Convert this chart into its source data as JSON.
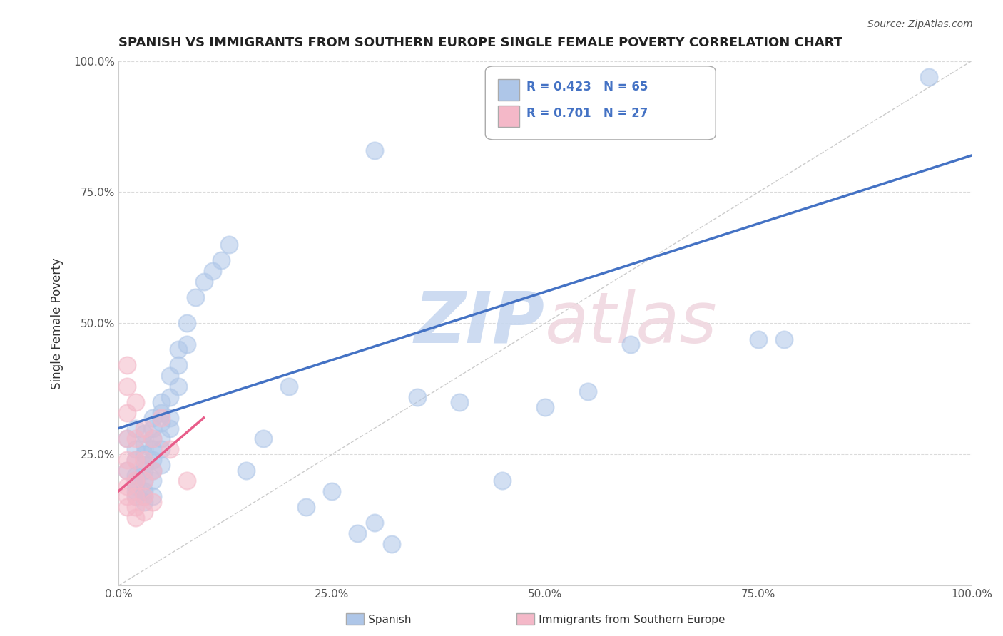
{
  "title": "SPANISH VS IMMIGRANTS FROM SOUTHERN EUROPE SINGLE FEMALE POVERTY CORRELATION CHART",
  "source": "Source: ZipAtlas.com",
  "xlabel": "",
  "ylabel": "Single Female Poverty",
  "xlim": [
    0.0,
    1.0
  ],
  "ylim": [
    0.0,
    1.0
  ],
  "xtick_labels": [
    "0.0%",
    "25.0%",
    "50.0%",
    "75.0%",
    "100.0%"
  ],
  "ytick_labels": [
    "",
    "25.0%",
    "50.0%",
    "75.0%",
    "100.0%"
  ],
  "legend_entries": [
    {
      "label": "Spanish",
      "color": "#aec6e8",
      "R": "0.423",
      "N": "65"
    },
    {
      "label": "Immigrants from Southern Europe",
      "color": "#f4b8c8",
      "R": "0.701",
      "N": "27"
    }
  ],
  "watermark": "ZIPatlas",
  "spanish_scatter": [
    [
      0.01,
      0.28
    ],
    [
      0.01,
      0.22
    ],
    [
      0.02,
      0.3
    ],
    [
      0.02,
      0.26
    ],
    [
      0.02,
      0.24
    ],
    [
      0.02,
      0.21
    ],
    [
      0.02,
      0.2
    ],
    [
      0.02,
      0.19
    ],
    [
      0.02,
      0.18
    ],
    [
      0.02,
      0.17
    ],
    [
      0.03,
      0.29
    ],
    [
      0.03,
      0.27
    ],
    [
      0.03,
      0.25
    ],
    [
      0.03,
      0.23
    ],
    [
      0.03,
      0.22
    ],
    [
      0.03,
      0.2
    ],
    [
      0.03,
      0.18
    ],
    [
      0.03,
      0.17
    ],
    [
      0.03,
      0.16
    ],
    [
      0.04,
      0.32
    ],
    [
      0.04,
      0.3
    ],
    [
      0.04,
      0.28
    ],
    [
      0.04,
      0.26
    ],
    [
      0.04,
      0.24
    ],
    [
      0.04,
      0.22
    ],
    [
      0.04,
      0.2
    ],
    [
      0.04,
      0.17
    ],
    [
      0.05,
      0.35
    ],
    [
      0.05,
      0.33
    ],
    [
      0.05,
      0.31
    ],
    [
      0.05,
      0.28
    ],
    [
      0.05,
      0.26
    ],
    [
      0.05,
      0.23
    ],
    [
      0.06,
      0.4
    ],
    [
      0.06,
      0.36
    ],
    [
      0.06,
      0.32
    ],
    [
      0.06,
      0.3
    ],
    [
      0.07,
      0.45
    ],
    [
      0.07,
      0.42
    ],
    [
      0.07,
      0.38
    ],
    [
      0.08,
      0.5
    ],
    [
      0.08,
      0.46
    ],
    [
      0.09,
      0.55
    ],
    [
      0.1,
      0.58
    ],
    [
      0.11,
      0.6
    ],
    [
      0.12,
      0.62
    ],
    [
      0.13,
      0.65
    ],
    [
      0.15,
      0.22
    ],
    [
      0.17,
      0.28
    ],
    [
      0.2,
      0.38
    ],
    [
      0.22,
      0.15
    ],
    [
      0.25,
      0.18
    ],
    [
      0.28,
      0.1
    ],
    [
      0.3,
      0.12
    ],
    [
      0.32,
      0.08
    ],
    [
      0.35,
      0.36
    ],
    [
      0.4,
      0.35
    ],
    [
      0.45,
      0.2
    ],
    [
      0.5,
      0.34
    ],
    [
      0.55,
      0.37
    ],
    [
      0.6,
      0.46
    ],
    [
      0.75,
      0.47
    ],
    [
      0.78,
      0.47
    ],
    [
      0.95,
      0.97
    ],
    [
      0.3,
      0.83
    ]
  ],
  "immigrant_scatter": [
    [
      0.01,
      0.42
    ],
    [
      0.01,
      0.38
    ],
    [
      0.01,
      0.33
    ],
    [
      0.01,
      0.28
    ],
    [
      0.01,
      0.24
    ],
    [
      0.01,
      0.22
    ],
    [
      0.01,
      0.19
    ],
    [
      0.01,
      0.17
    ],
    [
      0.01,
      0.15
    ],
    [
      0.02,
      0.35
    ],
    [
      0.02,
      0.28
    ],
    [
      0.02,
      0.24
    ],
    [
      0.02,
      0.2
    ],
    [
      0.02,
      0.17
    ],
    [
      0.02,
      0.15
    ],
    [
      0.02,
      0.13
    ],
    [
      0.03,
      0.3
    ],
    [
      0.03,
      0.24
    ],
    [
      0.03,
      0.2
    ],
    [
      0.03,
      0.17
    ],
    [
      0.03,
      0.14
    ],
    [
      0.04,
      0.28
    ],
    [
      0.04,
      0.22
    ],
    [
      0.04,
      0.16
    ],
    [
      0.05,
      0.32
    ],
    [
      0.06,
      0.26
    ],
    [
      0.08,
      0.2
    ]
  ],
  "blue_line": {
    "x0": 0.0,
    "y0": 0.3,
    "x1": 1.0,
    "y1": 0.82
  },
  "pink_line": {
    "x0": 0.0,
    "y0": 0.18,
    "x1": 0.1,
    "y1": 0.32
  },
  "diagonal_line": {
    "x0": 0.0,
    "y0": 0.0,
    "x1": 1.0,
    "y1": 1.0
  },
  "blue_color": "#4472c4",
  "pink_color": "#e85d8a",
  "scatter_blue": "#aec6e8",
  "scatter_pink": "#f4b8c8",
  "grid_color": "#cccccc",
  "title_color": "#222222",
  "stat_color": "#4472c4",
  "watermark_color_zip": "#c8d8f0",
  "watermark_color_atlas": "#f0d8e0"
}
